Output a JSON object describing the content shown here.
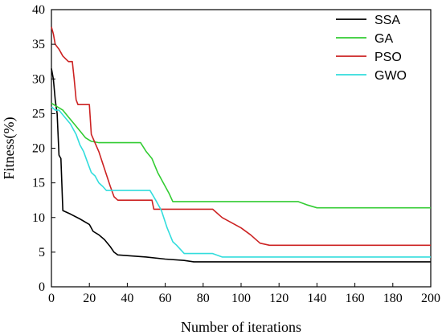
{
  "chart_data": {
    "type": "line",
    "xlabel": "Number of iterations",
    "ylabel": "Fitness(%)",
    "xlim": [
      0,
      200
    ],
    "ylim": [
      0,
      40
    ],
    "xticks": [
      0,
      20,
      40,
      60,
      80,
      100,
      120,
      140,
      160,
      180,
      200
    ],
    "yticks": [
      0,
      5,
      10,
      15,
      20,
      25,
      30,
      35,
      40
    ],
    "grid": false,
    "legend_position": "top-right",
    "series": [
      {
        "name": "SSA",
        "color": "#000000",
        "points": [
          [
            0,
            31.5
          ],
          [
            1,
            30
          ],
          [
            2,
            27
          ],
          [
            3,
            25
          ],
          [
            4,
            19
          ],
          [
            5,
            18.5
          ],
          [
            6,
            11
          ],
          [
            10,
            10.5
          ],
          [
            15,
            9.8
          ],
          [
            20,
            9
          ],
          [
            22,
            8
          ],
          [
            25,
            7.5
          ],
          [
            28,
            6.8
          ],
          [
            31,
            5.8
          ],
          [
            33,
            5
          ],
          [
            35,
            4.6
          ],
          [
            40,
            4.5
          ],
          [
            50,
            4.3
          ],
          [
            60,
            4
          ],
          [
            70,
            3.8
          ],
          [
            75,
            3.6
          ],
          [
            200,
            3.6
          ]
        ]
      },
      {
        "name": "GA",
        "color": "#33cc33",
        "points": [
          [
            0,
            26.5
          ],
          [
            3,
            26
          ],
          [
            6,
            25.5
          ],
          [
            9,
            24.5
          ],
          [
            12,
            23.5
          ],
          [
            15,
            22.5
          ],
          [
            18,
            21.5
          ],
          [
            21,
            21
          ],
          [
            25,
            20.8
          ],
          [
            47,
            20.8
          ],
          [
            50,
            19.5
          ],
          [
            53,
            18.5
          ],
          [
            56,
            16.5
          ],
          [
            59,
            15
          ],
          [
            62,
            13.5
          ],
          [
            64,
            12.3
          ],
          [
            130,
            12.3
          ],
          [
            135,
            11.8
          ],
          [
            140,
            11.4
          ],
          [
            200,
            11.4
          ]
        ]
      },
      {
        "name": "PSO",
        "color": "#cc2222",
        "points": [
          [
            0,
            37.5
          ],
          [
            1,
            36.5
          ],
          [
            2,
            35
          ],
          [
            4,
            34.3
          ],
          [
            6,
            33.3
          ],
          [
            9,
            32.5
          ],
          [
            11,
            32.5
          ],
          [
            12,
            30
          ],
          [
            13,
            27
          ],
          [
            14,
            26.3
          ],
          [
            20,
            26.3
          ],
          [
            21,
            22
          ],
          [
            25,
            19.5
          ],
          [
            28,
            17
          ],
          [
            31,
            14.5
          ],
          [
            33,
            13
          ],
          [
            35,
            12.5
          ],
          [
            50,
            12.5
          ],
          [
            53,
            12.5
          ],
          [
            54,
            11.2
          ],
          [
            85,
            11.2
          ],
          [
            90,
            10
          ],
          [
            100,
            8.5
          ],
          [
            105,
            7.5
          ],
          [
            110,
            6.3
          ],
          [
            115,
            6
          ],
          [
            200,
            6
          ]
        ]
      },
      {
        "name": "GWO",
        "color": "#33dddd",
        "points": [
          [
            0,
            26
          ],
          [
            2,
            25.5
          ],
          [
            4,
            25.5
          ],
          [
            7,
            24.5
          ],
          [
            10,
            23.5
          ],
          [
            13,
            22
          ],
          [
            15,
            20.5
          ],
          [
            17,
            19.5
          ],
          [
            19,
            18
          ],
          [
            21,
            16.5
          ],
          [
            23,
            16
          ],
          [
            25,
            15
          ],
          [
            27,
            14.5
          ],
          [
            29,
            13.9
          ],
          [
            52,
            13.9
          ],
          [
            55,
            12.5
          ],
          [
            58,
            11
          ],
          [
            61,
            8.5
          ],
          [
            64,
            6.5
          ],
          [
            66,
            6
          ],
          [
            70,
            4.8
          ],
          [
            85,
            4.8
          ],
          [
            90,
            4.3
          ],
          [
            200,
            4.3
          ]
        ]
      }
    ]
  }
}
